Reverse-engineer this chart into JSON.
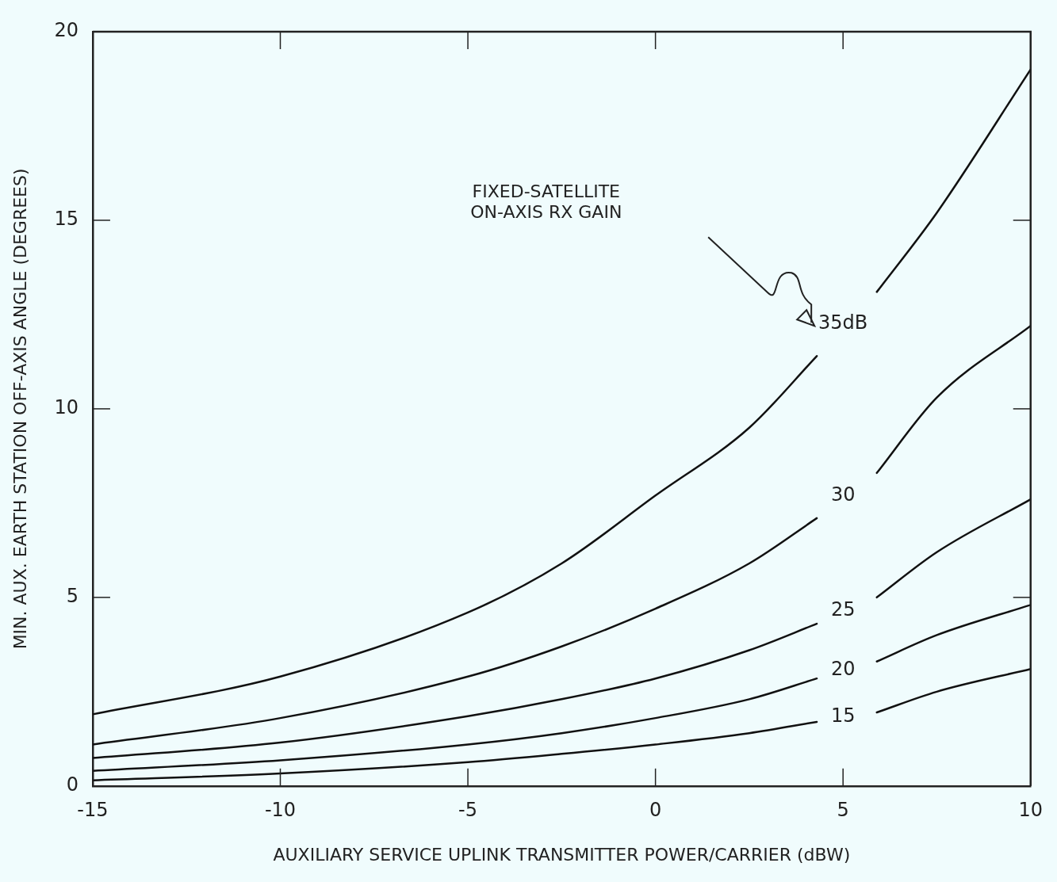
{
  "chart_data": {
    "type": "line",
    "xlabel": "AUXILIARY SERVICE UPLINK TRANSMITTER POWER/CARRIER (dBW)",
    "ylabel": "MIN. AUX. EARTH STATION OFF-AXIS ANGLE (DEGREES)",
    "x": [
      -15,
      -10,
      -5,
      -2.5,
      0,
      2.5,
      4.3,
      5,
      5.9,
      7.5,
      10
    ],
    "series": [
      {
        "name": "35dB",
        "color": "#111111",
        "values": [
          1.9,
          2.9,
          4.6,
          5.9,
          7.7,
          9.5,
          11.4,
          null,
          13.1,
          15.2,
          19.0
        ]
      },
      {
        "name": "30",
        "color": "#111111",
        "values": [
          1.1,
          1.8,
          2.9,
          3.7,
          4.7,
          5.9,
          7.1,
          null,
          8.3,
          10.3,
          12.2
        ]
      },
      {
        "name": "25",
        "color": "#111111",
        "values": [
          0.74,
          1.15,
          1.85,
          2.3,
          2.85,
          3.6,
          4.3,
          null,
          5.0,
          6.2,
          7.6
        ]
      },
      {
        "name": "20",
        "color": "#111111",
        "values": [
          0.4,
          0.68,
          1.1,
          1.4,
          1.8,
          2.3,
          2.85,
          null,
          3.3,
          4.0,
          4.8
        ]
      },
      {
        "name": "15",
        "color": "#111111",
        "values": [
          0.15,
          0.33,
          0.63,
          0.85,
          1.1,
          1.4,
          1.7,
          null,
          1.95,
          2.5,
          3.1
        ]
      }
    ],
    "xlim": [
      -15,
      10
    ],
    "xticks": [
      -15,
      -10,
      -5,
      0,
      5,
      10
    ],
    "ylim": [
      0,
      20
    ],
    "yticks": [
      0,
      5,
      10,
      15,
      20
    ],
    "grid": false,
    "legend": false,
    "marker": "none",
    "line_style": "solid",
    "annotations": [
      "FIXED-SATELLITE\nON-AXIS RX GAIN"
    ]
  }
}
